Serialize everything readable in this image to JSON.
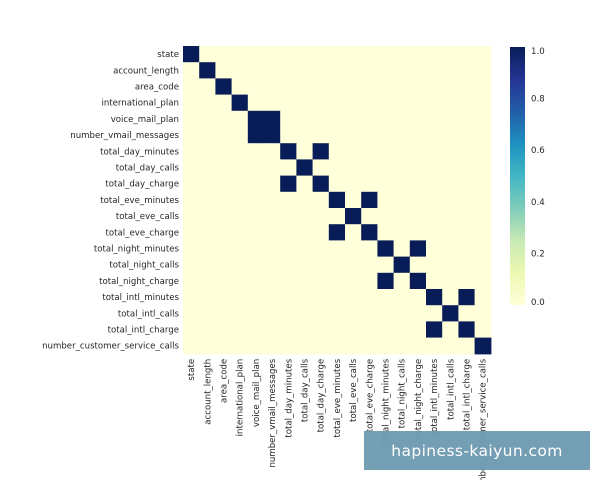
{
  "chart_data": {
    "type": "heatmap",
    "labels": [
      "state",
      "account_length",
      "area_code",
      "international_plan",
      "voice_mail_plan",
      "number_vmail_messages",
      "total_day_minutes",
      "total_day_calls",
      "total_day_charge",
      "total_eve_minutes",
      "total_eve_calls",
      "total_eve_charge",
      "total_night_minutes",
      "total_night_calls",
      "total_night_charge",
      "total_intl_minutes",
      "total_intl_calls",
      "total_intl_charge",
      "number_customer_service_calls"
    ],
    "matrix": [
      [
        1,
        0,
        0,
        0,
        0,
        0,
        0,
        0,
        0,
        0,
        0,
        0,
        0,
        0,
        0,
        0,
        0,
        0,
        0
      ],
      [
        0,
        1,
        0,
        0,
        0,
        0,
        0,
        0,
        0,
        0,
        0,
        0,
        0,
        0,
        0,
        0,
        0,
        0,
        0
      ],
      [
        0,
        0,
        1,
        0,
        0,
        0,
        0,
        0,
        0,
        0,
        0,
        0,
        0,
        0,
        0,
        0,
        0,
        0,
        0
      ],
      [
        0,
        0,
        0,
        1,
        0,
        0,
        0,
        0,
        0,
        0,
        0,
        0,
        0,
        0,
        0,
        0,
        0,
        0,
        0
      ],
      [
        0,
        0,
        0,
        0,
        1,
        1,
        0,
        0,
        0,
        0,
        0,
        0,
        0,
        0,
        0,
        0,
        0,
        0,
        0
      ],
      [
        0,
        0,
        0,
        0,
        1,
        1,
        0,
        0,
        0,
        0,
        0,
        0,
        0,
        0,
        0,
        0,
        0,
        0,
        0
      ],
      [
        0,
        0,
        0,
        0,
        0,
        0,
        1,
        0,
        1,
        0,
        0,
        0,
        0,
        0,
        0,
        0,
        0,
        0,
        0
      ],
      [
        0,
        0,
        0,
        0,
        0,
        0,
        0,
        1,
        0,
        0,
        0,
        0,
        0,
        0,
        0,
        0,
        0,
        0,
        0
      ],
      [
        0,
        0,
        0,
        0,
        0,
        0,
        1,
        0,
        1,
        0,
        0,
        0,
        0,
        0,
        0,
        0,
        0,
        0,
        0
      ],
      [
        0,
        0,
        0,
        0,
        0,
        0,
        0,
        0,
        0,
        1,
        0,
        1,
        0,
        0,
        0,
        0,
        0,
        0,
        0
      ],
      [
        0,
        0,
        0,
        0,
        0,
        0,
        0,
        0,
        0,
        0,
        1,
        0,
        0,
        0,
        0,
        0,
        0,
        0,
        0
      ],
      [
        0,
        0,
        0,
        0,
        0,
        0,
        0,
        0,
        0,
        1,
        0,
        1,
        0,
        0,
        0,
        0,
        0,
        0,
        0
      ],
      [
        0,
        0,
        0,
        0,
        0,
        0,
        0,
        0,
        0,
        0,
        0,
        0,
        1,
        0,
        1,
        0,
        0,
        0,
        0
      ],
      [
        0,
        0,
        0,
        0,
        0,
        0,
        0,
        0,
        0,
        0,
        0,
        0,
        0,
        1,
        0,
        0,
        0,
        0,
        0
      ],
      [
        0,
        0,
        0,
        0,
        0,
        0,
        0,
        0,
        0,
        0,
        0,
        0,
        1,
        0,
        1,
        0,
        0,
        0,
        0
      ],
      [
        0,
        0,
        0,
        0,
        0,
        0,
        0,
        0,
        0,
        0,
        0,
        0,
        0,
        0,
        0,
        1,
        0,
        1,
        0
      ],
      [
        0,
        0,
        0,
        0,
        0,
        0,
        0,
        0,
        0,
        0,
        0,
        0,
        0,
        0,
        0,
        0,
        1,
        0,
        0
      ],
      [
        0,
        0,
        0,
        0,
        0,
        0,
        0,
        0,
        0,
        0,
        0,
        0,
        0,
        0,
        0,
        1,
        0,
        1,
        0
      ],
      [
        0,
        0,
        0,
        0,
        0,
        0,
        0,
        0,
        0,
        0,
        0,
        0,
        0,
        0,
        0,
        0,
        0,
        0,
        1
      ]
    ],
    "colorbar": {
      "min": 0.0,
      "max": 1.0,
      "ticks": [
        "0.0",
        "0.2",
        "0.4",
        "0.6",
        "0.8",
        "1.0"
      ],
      "colormap": "YlGnBu",
      "low_color": "#ffffd9",
      "high_color": "#081d58"
    },
    "grid": false,
    "legend": "right-colorbar"
  },
  "watermark": {
    "text": "hapiness-kaiyun.com"
  }
}
